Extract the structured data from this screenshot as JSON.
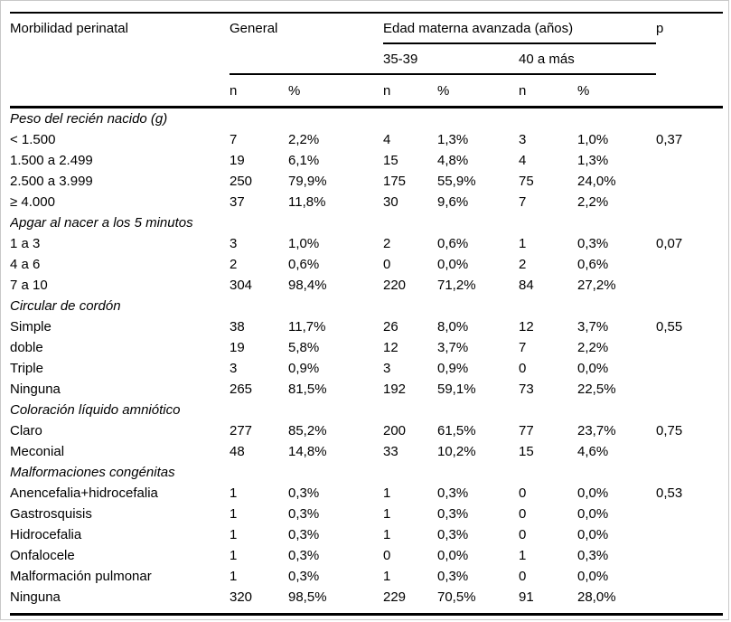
{
  "table": {
    "title_col": "Morbilidad perinatal",
    "group_general": "General",
    "group_ema": "Edad materna avanzada (años)",
    "p_label": "p",
    "sub_35_39": "35-39",
    "sub_40_plus": "40 a más",
    "n_label": "n",
    "pct_label": "%"
  },
  "sections": [
    {
      "label": "Peso del recién nacido (g)",
      "rows": [
        {
          "label": "< 1.500",
          "cells": [
            "7",
            "2,2%",
            "4",
            "1,3%",
            "3",
            "1,0%"
          ],
          "p": "0,37"
        },
        {
          "label": "1.500 a 2.499",
          "cells": [
            "19",
            "6,1%",
            "15",
            "4,8%",
            "4",
            "1,3%"
          ],
          "p": ""
        },
        {
          "label": "2.500 a 3.999",
          "cells": [
            "250",
            "79,9%",
            "175",
            "55,9%",
            "75",
            "24,0%"
          ],
          "p": ""
        },
        {
          "label": "≥ 4.000",
          "cells": [
            "37",
            "11,8%",
            "30",
            "9,6%",
            "7",
            "2,2%"
          ],
          "p": ""
        }
      ]
    },
    {
      "label": "Apgar al nacer a los 5 minutos",
      "rows": [
        {
          "label": "1 a 3",
          "cells": [
            "3",
            "1,0%",
            "2",
            "0,6%",
            "1",
            "0,3%"
          ],
          "p": "0,07"
        },
        {
          "label": "4 a 6",
          "cells": [
            "2",
            "0,6%",
            "0",
            "0,0%",
            "2",
            "0,6%"
          ],
          "p": ""
        },
        {
          "label": "7 a 10",
          "cells": [
            "304",
            "98,4%",
            "220",
            "71,2%",
            "84",
            "27,2%"
          ],
          "p": ""
        }
      ]
    },
    {
      "label": "Circular de cordón",
      "rows": [
        {
          "label": "Simple",
          "cells": [
            "38",
            "11,7%",
            "26",
            "8,0%",
            "12",
            "3,7%"
          ],
          "p": "0,55"
        },
        {
          "label": "doble",
          "cells": [
            "19",
            "5,8%",
            "12",
            "3,7%",
            "7",
            "2,2%"
          ],
          "p": ""
        },
        {
          "label": "Triple",
          "cells": [
            "3",
            "0,9%",
            "3",
            "0,9%",
            "0",
            "0,0%"
          ],
          "p": ""
        },
        {
          "label": "Ninguna",
          "cells": [
            "265",
            "81,5%",
            "192",
            "59,1%",
            "73",
            "22,5%"
          ],
          "p": ""
        }
      ]
    },
    {
      "label": "Coloración líquido amniótico",
      "rows": [
        {
          "label": "Claro",
          "cells": [
            "277",
            "85,2%",
            "200",
            "61,5%",
            "77",
            "23,7%"
          ],
          "p": "0,75"
        },
        {
          "label": "Meconial",
          "cells": [
            "48",
            "14,8%",
            "33",
            "10,2%",
            "15",
            "4,6%"
          ],
          "p": ""
        }
      ]
    },
    {
      "label": "Malformaciones congénitas",
      "rows": [
        {
          "label": "Anencefalia+hidrocefalia",
          "cells": [
            "1",
            "0,3%",
            "1",
            "0,3%",
            "0",
            "0,0%"
          ],
          "p": "0,53"
        },
        {
          "label": "Gastrosquisis",
          "cells": [
            "1",
            "0,3%",
            "1",
            "0,3%",
            "0",
            "0,0%"
          ],
          "p": ""
        },
        {
          "label": "Hidrocefalia",
          "cells": [
            "1",
            "0,3%",
            "1",
            "0,3%",
            "0",
            "0,0%"
          ],
          "p": ""
        },
        {
          "label": "Onfalocele",
          "cells": [
            "1",
            "0,3%",
            "0",
            "0,0%",
            "1",
            "0,3%"
          ],
          "p": ""
        },
        {
          "label": "Malformación pulmonar",
          "cells": [
            "1",
            "0,3%",
            "1",
            "0,3%",
            "0",
            "0,0%"
          ],
          "p": ""
        },
        {
          "label": "Ninguna",
          "cells": [
            "320",
            "98,5%",
            "229",
            "70,5%",
            "91",
            "28,0%"
          ],
          "p": ""
        }
      ]
    }
  ],
  "colors": {
    "text": "#000000",
    "rule": "#000000",
    "frame_border": "#c8c8c8",
    "background": "#ffffff"
  }
}
